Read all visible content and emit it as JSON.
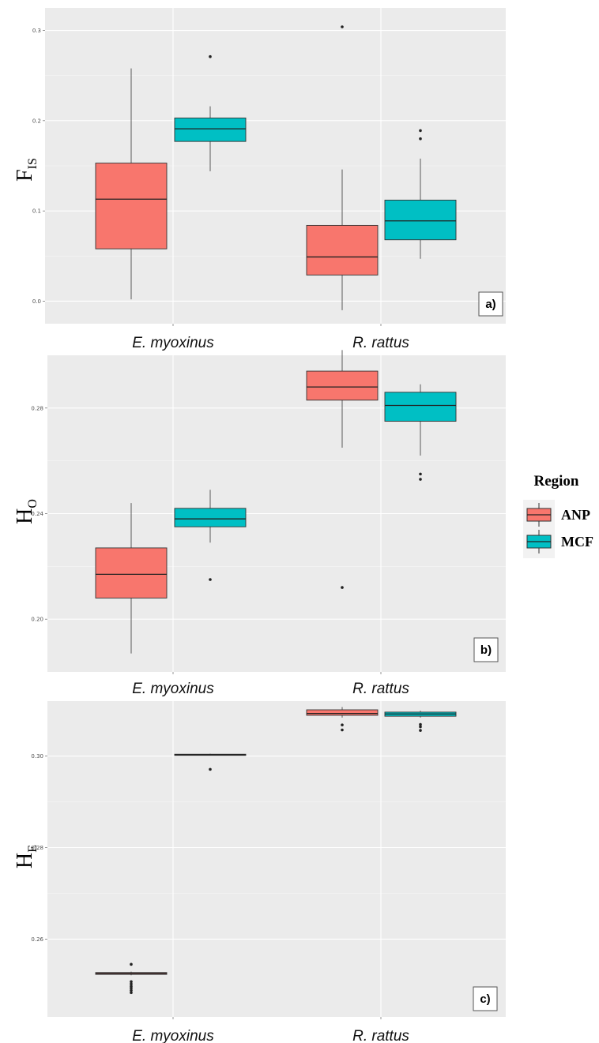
{
  "legend": {
    "title": "Region",
    "entries": [
      {
        "name": "ANP",
        "color": "#F8766D"
      },
      {
        "name": "MCF",
        "color": "#00BFC4"
      }
    ]
  },
  "chart_data": [
    {
      "type": "box",
      "panel_label": "a)",
      "ylabel_main": "F",
      "ylabel_sub": "IS",
      "categories": [
        "E. myoxinus",
        "R. rattus"
      ],
      "ylim": [
        -0.025,
        0.325
      ],
      "yticks": [
        0.0,
        0.1,
        0.2,
        0.3
      ],
      "ytick_labels": [
        "0.0",
        "0.1",
        "0.2",
        "0.3"
      ],
      "series": [
        {
          "name": "ANP",
          "color": "#F8766D",
          "boxes": [
            {
              "min": 0.002,
              "q1": 0.058,
              "median": 0.113,
              "q3": 0.153,
              "max": 0.258,
              "outliers": []
            },
            {
              "min": -0.01,
              "q1": 0.029,
              "median": 0.049,
              "q3": 0.084,
              "max": 0.146,
              "outliers": [
                0.304
              ]
            }
          ]
        },
        {
          "name": "MCF",
          "color": "#00BFC4",
          "boxes": [
            {
              "min": 0.144,
              "q1": 0.177,
              "median": 0.191,
              "q3": 0.203,
              "max": 0.216,
              "outliers": [
                0.271
              ]
            },
            {
              "min": 0.047,
              "q1": 0.068,
              "median": 0.089,
              "q3": 0.112,
              "max": 0.158,
              "outliers": [
                0.18,
                0.189
              ]
            }
          ]
        }
      ]
    },
    {
      "type": "box",
      "panel_label": "b)",
      "ylabel_main": "H",
      "ylabel_sub": "O",
      "categories": [
        "E. myoxinus",
        "R. rattus"
      ],
      "ylim": [
        0.18,
        0.3
      ],
      "yticks": [
        0.2,
        0.24,
        0.28
      ],
      "ytick_labels": [
        "0.20",
        "0.24",
        "0.28"
      ],
      "series": [
        {
          "name": "ANP",
          "color": "#F8766D",
          "boxes": [
            {
              "min": 0.187,
              "q1": 0.208,
              "median": 0.217,
              "q3": 0.227,
              "max": 0.244,
              "outliers": []
            },
            {
              "min": 0.265,
              "q1": 0.283,
              "median": 0.288,
              "q3": 0.294,
              "max": 0.302,
              "outliers": [
                0.212
              ]
            }
          ]
        },
        {
          "name": "MCF",
          "color": "#00BFC4",
          "boxes": [
            {
              "min": 0.229,
              "q1": 0.235,
              "median": 0.238,
              "q3": 0.242,
              "max": 0.249,
              "outliers": [
                0.215
              ]
            },
            {
              "min": 0.262,
              "q1": 0.275,
              "median": 0.281,
              "q3": 0.286,
              "max": 0.289,
              "outliers": [
                0.253,
                0.255
              ]
            }
          ]
        }
      ]
    },
    {
      "type": "box",
      "panel_label": "c)",
      "ylabel_main": "H",
      "ylabel_sub": "E",
      "categories": [
        "E. myoxinus",
        "R. rattus"
      ],
      "ylim": [
        0.243,
        0.312
      ],
      "yticks": [
        0.26,
        0.28,
        0.3
      ],
      "ytick_labels": [
        "0.26",
        "0.28",
        "0.30"
      ],
      "series": [
        {
          "name": "ANP",
          "color": "#F8766D",
          "boxes": [
            {
              "min": 0.2521,
              "q1": 0.2523,
              "median": 0.2525,
              "q3": 0.2527,
              "max": 0.2529,
              "outliers": [
                0.2483,
                0.2488,
                0.2493,
                0.2497,
                0.2502,
                0.2507,
                0.2545
              ]
            },
            {
              "min": 0.3084,
              "q1": 0.3089,
              "median": 0.3093,
              "q3": 0.3101,
              "max": 0.3107,
              "outliers": [
                0.3057,
                0.3068
              ]
            }
          ]
        },
        {
          "name": "MCF",
          "color": "#00BFC4",
          "boxes": [
            {
              "min": 0.3001,
              "q1": 0.3002,
              "median": 0.3003,
              "q3": 0.3004,
              "max": 0.3005,
              "outliers": [
                0.2971
              ]
            },
            {
              "min": 0.3084,
              "q1": 0.3087,
              "median": 0.3092,
              "q3": 0.3096,
              "max": 0.3099,
              "outliers": [
                0.3056,
                0.3064,
                0.3069
              ]
            }
          ]
        }
      ]
    }
  ]
}
